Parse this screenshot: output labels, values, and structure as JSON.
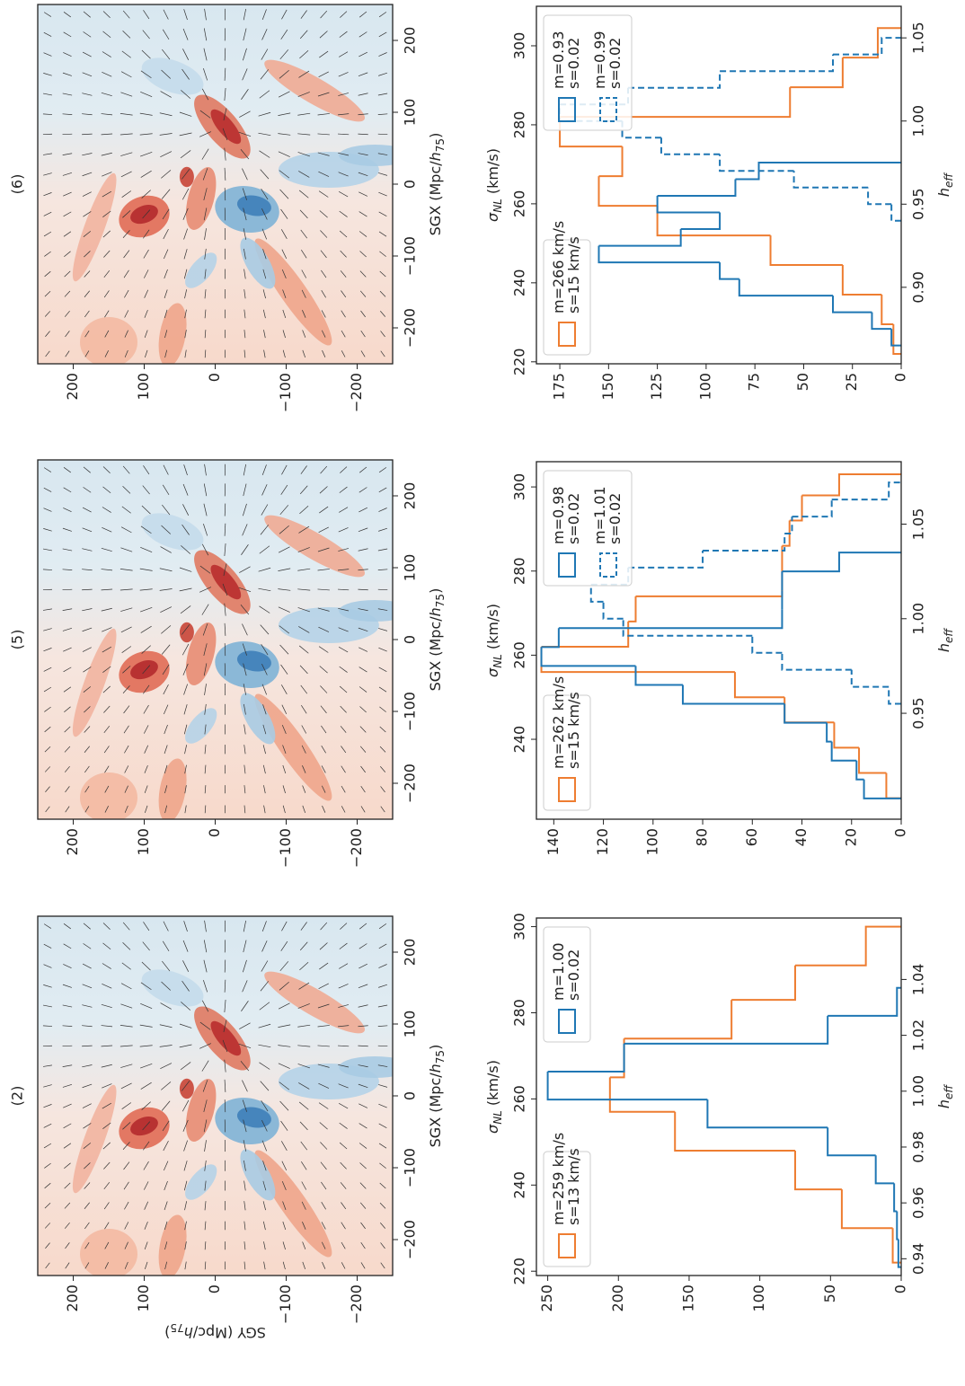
{
  "chart_data": [
    {
      "type": "contour",
      "title": "(2)",
      "xlabel": {
        "text": "SGX (Mpc/",
        "var": "h",
        "sub": "75",
        "end": ")"
      },
      "ylabel": {
        "text": "SGY (Mpc/",
        "var": "h",
        "sub": "75",
        "end": ")"
      },
      "xlim": [
        -250,
        250
      ],
      "ylim": [
        -250,
        250
      ],
      "xticks": [
        {
          "value": -200,
          "label": "−200"
        },
        {
          "value": -100,
          "label": "−100"
        },
        0,
        100,
        200
      ],
      "yticks": [
        {
          "value": -200,
          "label": "−200"
        },
        {
          "value": -100,
          "label": "−100"
        },
        0,
        100,
        200
      ]
    },
    {
      "type": "histogram",
      "x2label": {
        "var": "σ",
        "sub": "NL",
        "end": "(km/s)"
      },
      "xlabel": {
        "var": "h",
        "sub": "eff"
      },
      "x2lim": [
        219,
        302
      ],
      "x2ticks": [
        220,
        240,
        260,
        280,
        300
      ],
      "xlim": [
        0.934,
        1.062
      ],
      "xticks": [
        0.94,
        0.96,
        0.98,
        {
          "value": 1.0,
          "label": "1.00"
        },
        1.02,
        1.04
      ],
      "ylim": [
        0,
        258
      ],
      "yticks": [
        0,
        50,
        100,
        150,
        200,
        250
      ],
      "series": [
        {
          "legend": [
            "m=259 km/s",
            "s=13 km/s"
          ],
          "legend_loc": "upper left",
          "color": "#ee7d31",
          "axis": "x2",
          "bins": [
            222,
            230,
            239,
            248,
            257,
            265,
            274,
            283,
            291,
            300
          ],
          "values": [
            6,
            42,
            75,
            160,
            206,
            196,
            120,
            75,
            25
          ]
        },
        {
          "legend": [
            "m=1.00",
            "s=0.02"
          ],
          "legend_loc": "upper right",
          "color": "#1f77b4",
          "bins": [
            0.937,
            0.947,
            0.957,
            0.967,
            0.977,
            0.987,
            0.997,
            1.007,
            1.017,
            1.027,
            1.037
          ],
          "values": [
            2,
            3,
            5,
            18,
            52,
            137,
            250,
            196,
            52,
            3
          ]
        }
      ]
    },
    {
      "type": "contour",
      "title": "(5)",
      "xlabel": {
        "text": "SGX (Mpc/",
        "var": "h",
        "sub": "75",
        "end": ")"
      },
      "xlim": [
        -250,
        250
      ],
      "ylim": [
        -250,
        250
      ],
      "xticks": [
        {
          "value": -200,
          "label": "−200"
        },
        {
          "value": -100,
          "label": "−100"
        },
        0,
        100,
        200
      ],
      "yticks": [
        {
          "value": -200,
          "label": "−200"
        },
        {
          "value": -100,
          "label": "−100"
        },
        0,
        100,
        200
      ]
    },
    {
      "type": "histogram",
      "x2label": {
        "var": "σ",
        "sub": "NL",
        "end": "(km/s)"
      },
      "xlabel": {
        "var": "h",
        "sub": "eff"
      },
      "x2lim": [
        221,
        306
      ],
      "x2ticks": [
        240,
        260,
        280,
        300
      ],
      "xlim": [
        0.894,
        1.083
      ],
      "xticks": [
        0.95,
        {
          "value": 1.0,
          "label": "1.00"
        },
        1.05
      ],
      "ylim": [
        0,
        147
      ],
      "yticks": [
        0,
        20,
        40,
        60,
        80,
        100,
        120,
        140
      ],
      "series": [
        {
          "legend": [
            "m=262 km/s",
            "s=15 km/s"
          ],
          "legend_loc": "upper left",
          "color": "#ee7d31",
          "axis": "x2",
          "bins": [
            226,
            232,
            238,
            244,
            250,
            256,
            262,
            268,
            274,
            280,
            286,
            292,
            298,
            303
          ],
          "values": [
            6,
            17,
            27,
            47,
            67,
            145,
            110,
            107,
            48,
            48,
            45,
            40,
            25
          ]
        },
        {
          "legend": [
            "m=0.98",
            "s=0.02"
          ],
          "legend_loc": "upper right",
          "color": "#1f77b4",
          "bins": [
            0.905,
            0.915,
            0.925,
            0.935,
            0.945,
            0.955,
            0.965,
            0.975,
            0.985,
            0.995,
            1.005,
            1.015,
            1.025,
            1.035
          ],
          "values": [
            15,
            18,
            28,
            30,
            47,
            88,
            107,
            145,
            138,
            48,
            48,
            48,
            25
          ]
        },
        {
          "legend": [
            "m=1.01",
            "s=0.02"
          ],
          "legend_loc": "upper right",
          "color": "#1f77b4",
          "dashed": true,
          "bins": [
            0.955,
            0.964,
            0.973,
            0.982,
            0.991,
            1.0,
            1.009,
            1.018,
            1.027,
            1.036,
            1.045,
            1.054,
            1.063,
            1.072
          ],
          "values": [
            5,
            20,
            48,
            60,
            112,
            120,
            125,
            110,
            80,
            47,
            44,
            28,
            5
          ]
        }
      ]
    },
    {
      "type": "contour",
      "title": "(6)",
      "xlabel": {
        "text": "SGX (Mpc/",
        "var": "h",
        "sub": "75",
        "end": ")"
      },
      "xlim": [
        -250,
        250
      ],
      "ylim": [
        -250,
        250
      ],
      "xticks": [
        {
          "value": -200,
          "label": "−200"
        },
        {
          "value": -100,
          "label": "−100"
        },
        0,
        100,
        200
      ],
      "yticks": [
        {
          "value": -200,
          "label": "−200"
        },
        {
          "value": -100,
          "label": "−100"
        },
        0,
        100,
        200
      ]
    },
    {
      "type": "histogram",
      "x2label": {
        "var": "σ",
        "sub": "NL",
        "end": "(km/s)"
      },
      "xlabel": {
        "var": "h",
        "sub": "eff"
      },
      "x2lim": [
        219.5,
        310
      ],
      "x2ticks": [
        220,
        240,
        260,
        280,
        300
      ],
      "xlim": [
        0.854,
        1.069
      ],
      "xticks": [
        {
          "value": 0.9,
          "label": "0.90"
        },
        0.95,
        {
          "value": 1.0,
          "label": "1.00"
        },
        1.05
      ],
      "ylim": [
        0,
        187
      ],
      "yticks": [
        0,
        25,
        50,
        75,
        100,
        125,
        150,
        175
      ],
      "series": [
        {
          "legend": [
            "m=266 km/s",
            "s=15 km/s"
          ],
          "legend_loc": "upper left",
          "color": "#ee7d31",
          "axis": "x2",
          "bins": [
            222,
            229.5,
            237,
            244.5,
            252,
            259.5,
            267,
            274.5,
            282,
            289.5,
            297,
            304.5
          ],
          "values": [
            4,
            10,
            30,
            67,
            125,
            155,
            143,
            175,
            57,
            30,
            12
          ]
        },
        {
          "legend": [
            "m=0.93",
            "s=0.02"
          ],
          "legend_loc": "upper right",
          "color": "#1f77b4",
          "bins": [
            0.865,
            0.875,
            0.885,
            0.895,
            0.905,
            0.915,
            0.925,
            0.935,
            0.945,
            0.955,
            0.965,
            0.975
          ],
          "values": [
            5,
            15,
            35,
            83,
            93,
            155,
            113,
            93,
            125,
            85,
            73
          ]
        },
        {
          "legend": [
            "m=0.99",
            "s=0.02"
          ],
          "legend_loc": "upper right",
          "color": "#1f77b4",
          "dashed": true,
          "bins": [
            0.94,
            0.95,
            0.96,
            0.97,
            0.98,
            0.99,
            1.0,
            1.01,
            1.02,
            1.03,
            1.04,
            1.05
          ],
          "values": [
            5,
            17,
            55,
            93,
            123,
            143,
            175,
            140,
            93,
            35,
            10
          ]
        }
      ]
    }
  ]
}
